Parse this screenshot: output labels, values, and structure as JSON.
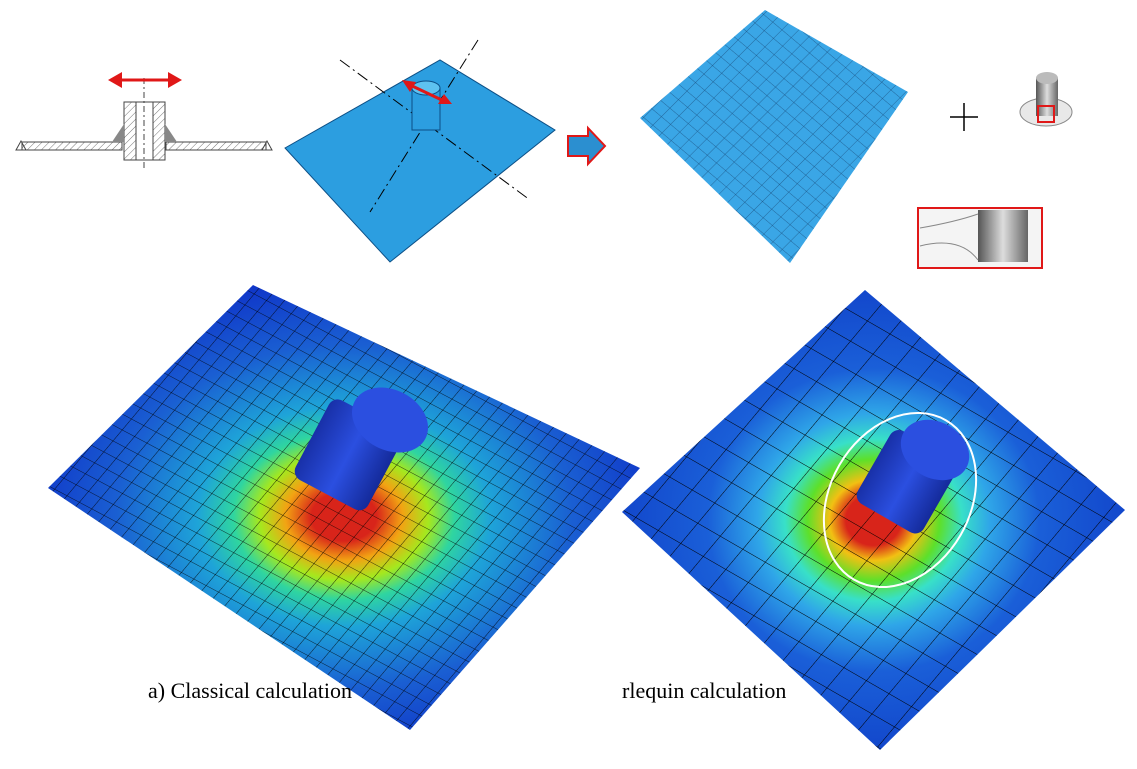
{
  "captions": {
    "classical": "a) Classical calculation",
    "arlequin": "rlequin calculation"
  }
}
